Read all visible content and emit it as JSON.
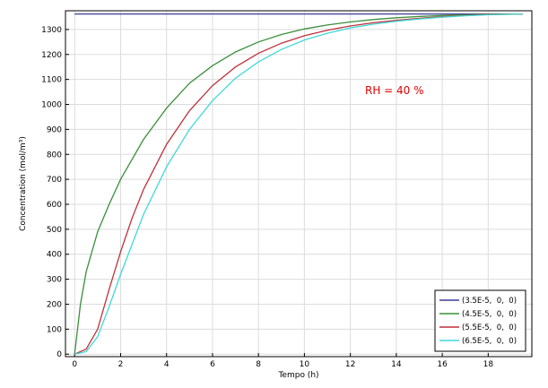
{
  "chart_data": {
    "type": "line",
    "xlabel": "Tempo (h)",
    "ylabel": "Concentration (mol/m³)",
    "xlim": [
      -0.4,
      19.9
    ],
    "ylim": [
      -10,
      1375
    ],
    "x_ticks": [
      0,
      2,
      4,
      6,
      8,
      10,
      12,
      14,
      16,
      18
    ],
    "y_ticks": [
      0,
      100,
      200,
      300,
      400,
      500,
      600,
      700,
      800,
      900,
      1000,
      1100,
      1200,
      1300
    ],
    "grid": true,
    "legend_position": "bottom-right",
    "annotation": "RH = 40 %",
    "annotation_color": "#e00000",
    "series": [
      {
        "name": "(3.5E-5,  0,  0)",
        "color": "#3c3c9c",
        "x": [
          0,
          1,
          2,
          4,
          6,
          8,
          10,
          12,
          14,
          16,
          18,
          19.5
        ],
        "y": [
          1362,
          1362,
          1362,
          1362,
          1362,
          1362,
          1362,
          1362,
          1362,
          1362,
          1362,
          1362
        ]
      },
      {
        "name": "(4.5E-5,  0,  0)",
        "color": "#3a8f3a",
        "x": [
          0,
          0.25,
          0.5,
          1,
          1.5,
          2,
          3,
          4,
          5,
          6,
          7,
          8,
          9,
          10,
          11,
          12,
          13,
          14,
          15,
          16,
          17,
          18,
          19.5
        ],
        "y": [
          0,
          200,
          330,
          490,
          600,
          700,
          860,
          985,
          1085,
          1155,
          1210,
          1250,
          1280,
          1302,
          1318,
          1330,
          1340,
          1347,
          1352,
          1356,
          1359,
          1361,
          1362
        ]
      },
      {
        "name": "(5.5E-5,  0,  0)",
        "color": "#c0303a",
        "x": [
          0,
          0.5,
          1,
          1.5,
          2,
          2.5,
          3,
          4,
          5,
          6,
          7,
          8,
          9,
          10,
          11,
          12,
          13,
          14,
          15,
          16,
          17,
          18,
          19.5
        ],
        "y": [
          0,
          20,
          100,
          260,
          410,
          545,
          660,
          840,
          975,
          1075,
          1150,
          1205,
          1245,
          1275,
          1297,
          1314,
          1327,
          1337,
          1345,
          1351,
          1356,
          1360,
          1362
        ]
      },
      {
        "name": "(6.5E-5,  0,  0)",
        "color": "#40d8d8",
        "x": [
          0,
          0.5,
          1,
          1.5,
          2,
          2.5,
          3,
          4,
          5,
          6,
          7,
          8,
          9,
          10,
          11,
          12,
          13,
          14,
          15,
          16,
          17,
          18,
          19.5
        ],
        "y": [
          0,
          10,
          70,
          190,
          320,
          440,
          560,
          750,
          900,
          1015,
          1105,
          1170,
          1220,
          1258,
          1285,
          1306,
          1321,
          1333,
          1342,
          1349,
          1355,
          1359,
          1362
        ]
      }
    ]
  }
}
